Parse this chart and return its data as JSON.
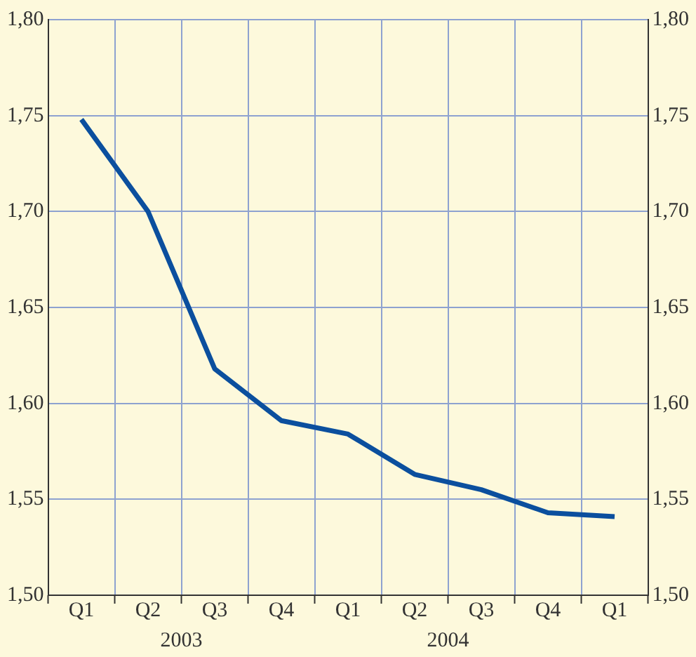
{
  "chart_data": {
    "type": "line",
    "categories": [
      "Q1",
      "Q2",
      "Q3",
      "Q4",
      "Q1",
      "Q2",
      "Q3",
      "Q4",
      "Q1"
    ],
    "series": [
      {
        "color": "#0b4f9e",
        "values": [
          1.748,
          1.7,
          1.618,
          1.591,
          1.584,
          1.563,
          1.555,
          1.543,
          1.541
        ]
      }
    ],
    "ylim": [
      1.5,
      1.8
    ],
    "yticks": [
      {
        "value": 1.5,
        "label": "1,50"
      },
      {
        "value": 1.55,
        "label": "1,55"
      },
      {
        "value": 1.6,
        "label": "1,60"
      },
      {
        "value": 1.65,
        "label": "1,65"
      },
      {
        "value": 1.7,
        "label": "1,70"
      },
      {
        "value": 1.75,
        "label": "1,75"
      },
      {
        "value": 1.8,
        "label": "1,80"
      }
    ],
    "y2lim": [
      1.5,
      1.8
    ],
    "y2ticks": [
      {
        "value": 1.5,
        "label": "1,50"
      },
      {
        "value": 1.55,
        "label": "1,55"
      },
      {
        "value": 1.6,
        "label": "1,60"
      },
      {
        "value": 1.65,
        "label": "1,65"
      },
      {
        "value": 1.7,
        "label": "1,70"
      },
      {
        "value": 1.75,
        "label": "1,75"
      },
      {
        "value": 1.8,
        "label": "1,80"
      }
    ],
    "annotations": [
      "2003",
      "2004"
    ],
    "grid": true,
    "legend": false,
    "marker": "none",
    "line_style": "solid"
  }
}
